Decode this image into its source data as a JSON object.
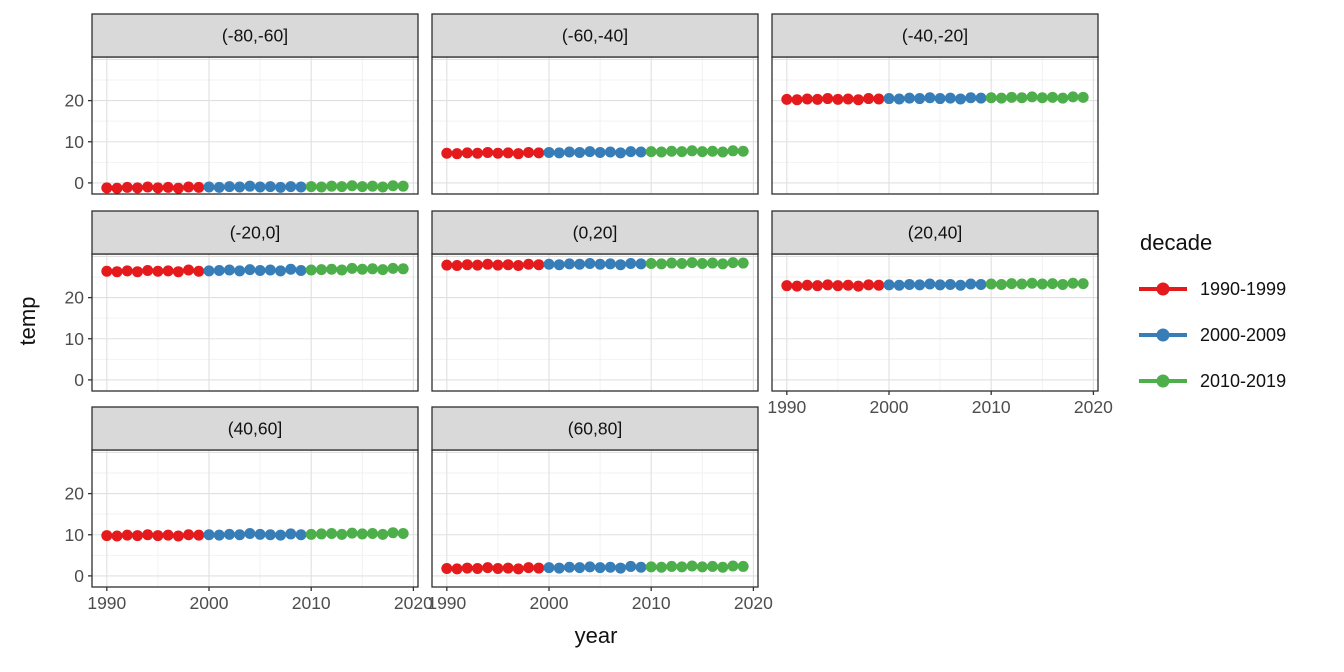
{
  "chart_data": {
    "type": "scatter",
    "title": "",
    "xlabel": "year",
    "ylabel": "temp",
    "grid": "on",
    "legend_position": "right",
    "x_ticks": [
      1990,
      2000,
      2010,
      2020
    ],
    "x_minor_ticks": [
      1995,
      2005,
      2015
    ],
    "y_ticks": [
      0,
      10,
      20
    ],
    "y_gridlines_major": [
      0,
      10,
      20,
      30
    ],
    "y_gridlines_minor": [
      5,
      15,
      25
    ],
    "xlim": [
      1988.55,
      2020.45
    ],
    "ylim": [
      -2.7,
      30.6
    ],
    "x": [
      1990,
      1991,
      1992,
      1993,
      1994,
      1995,
      1996,
      1997,
      1998,
      1999,
      2000,
      2001,
      2002,
      2003,
      2004,
      2005,
      2006,
      2007,
      2008,
      2009,
      2010,
      2011,
      2012,
      2013,
      2014,
      2015,
      2016,
      2017,
      2018,
      2019
    ],
    "series_by": "decade",
    "decades": [
      {
        "name": "1990-1999",
        "color": "#E41A1C",
        "start": 1990,
        "end": 1999
      },
      {
        "name": "2000-2009",
        "color": "#377EB8",
        "start": 2000,
        "end": 2009
      },
      {
        "name": "2010-2019",
        "color": "#4DAF4A",
        "start": 2010,
        "end": 2019
      }
    ],
    "facets": [
      {
        "label": "(-80,-60]",
        "row": 0,
        "col": 0,
        "values": [
          -1.2,
          -1.3,
          -1.1,
          -1.2,
          -1.0,
          -1.2,
          -1.1,
          -1.3,
          -1.0,
          -1.1,
          -1.0,
          -1.1,
          -0.9,
          -1.0,
          -0.8,
          -1.0,
          -0.9,
          -1.1,
          -0.9,
          -1.0,
          -0.9,
          -1.0,
          -0.8,
          -0.9,
          -0.7,
          -0.9,
          -0.8,
          -1.0,
          -0.7,
          -0.8
        ]
      },
      {
        "label": "(-60,-40]",
        "row": 0,
        "col": 1,
        "values": [
          7.2,
          7.1,
          7.3,
          7.2,
          7.4,
          7.2,
          7.3,
          7.1,
          7.4,
          7.3,
          7.4,
          7.3,
          7.5,
          7.4,
          7.6,
          7.4,
          7.5,
          7.3,
          7.6,
          7.5,
          7.6,
          7.5,
          7.7,
          7.6,
          7.8,
          7.6,
          7.7,
          7.5,
          7.8,
          7.7
        ]
      },
      {
        "label": "(-40,-20]",
        "row": 0,
        "col": 2,
        "values": [
          20.3,
          20.2,
          20.4,
          20.3,
          20.5,
          20.3,
          20.4,
          20.2,
          20.5,
          20.4,
          20.5,
          20.4,
          20.6,
          20.5,
          20.7,
          20.5,
          20.6,
          20.4,
          20.7,
          20.6,
          20.7,
          20.6,
          20.8,
          20.7,
          20.9,
          20.7,
          20.8,
          20.6,
          20.9,
          20.8
        ]
      },
      {
        "label": "(-20,0]",
        "row": 1,
        "col": 0,
        "values": [
          26.4,
          26.3,
          26.5,
          26.3,
          26.6,
          26.4,
          26.5,
          26.3,
          26.7,
          26.4,
          26.5,
          26.6,
          26.7,
          26.5,
          26.8,
          26.6,
          26.7,
          26.5,
          26.9,
          26.6,
          26.7,
          26.8,
          26.9,
          26.7,
          27.1,
          26.9,
          27.0,
          26.8,
          27.1,
          27.0
        ]
      },
      {
        "label": "(0,20]",
        "row": 1,
        "col": 1,
        "values": [
          27.9,
          27.8,
          28.0,
          27.9,
          28.1,
          27.9,
          28.0,
          27.8,
          28.1,
          28.0,
          28.1,
          28.0,
          28.2,
          28.1,
          28.3,
          28.1,
          28.2,
          28.0,
          28.3,
          28.2,
          28.3,
          28.2,
          28.4,
          28.3,
          28.5,
          28.3,
          28.4,
          28.2,
          28.5,
          28.4
        ]
      },
      {
        "label": "(20,40]",
        "row": 1,
        "col": 2,
        "values": [
          22.9,
          22.8,
          23.0,
          22.9,
          23.1,
          22.9,
          23.0,
          22.8,
          23.1,
          23.0,
          23.1,
          23.0,
          23.2,
          23.1,
          23.3,
          23.1,
          23.2,
          23.0,
          23.3,
          23.2,
          23.3,
          23.2,
          23.4,
          23.3,
          23.5,
          23.3,
          23.4,
          23.2,
          23.5,
          23.4
        ]
      },
      {
        "label": "(40,60]",
        "row": 2,
        "col": 0,
        "values": [
          9.8,
          9.7,
          9.9,
          9.8,
          10.0,
          9.8,
          9.9,
          9.7,
          10.0,
          9.9,
          10.0,
          9.9,
          10.1,
          10.0,
          10.3,
          10.1,
          10.0,
          9.9,
          10.2,
          10.0,
          10.1,
          10.2,
          10.3,
          10.1,
          10.4,
          10.2,
          10.3,
          10.1,
          10.5,
          10.3
        ]
      },
      {
        "label": "(60,80]",
        "row": 2,
        "col": 1,
        "values": [
          1.8,
          1.7,
          1.9,
          1.8,
          2.0,
          1.8,
          1.9,
          1.7,
          2.0,
          1.9,
          2.0,
          1.9,
          2.1,
          2.0,
          2.2,
          2.0,
          2.1,
          1.9,
          2.3,
          2.1,
          2.2,
          2.1,
          2.3,
          2.2,
          2.4,
          2.2,
          2.3,
          2.1,
          2.4,
          2.3
        ]
      }
    ]
  },
  "legend": {
    "title": "decade",
    "entries": [
      {
        "label": "1990-1999",
        "color": "#E41A1C"
      },
      {
        "label": "2000-2009",
        "color": "#377EB8"
      },
      {
        "label": "2010-2019",
        "color": "#4DAF4A"
      }
    ]
  },
  "colors": {
    "red_1990s": "#E41A1C",
    "blue_2000s": "#377EB8",
    "green_2010s": "#4DAF4A",
    "strip_background": "#D9D9D9",
    "panel_border": "#2E2E2E",
    "grid_major": "#E0E0E0",
    "grid_minor": "#F2F2F2",
    "tick_label": "#4D4D4D",
    "text": "#111111"
  }
}
